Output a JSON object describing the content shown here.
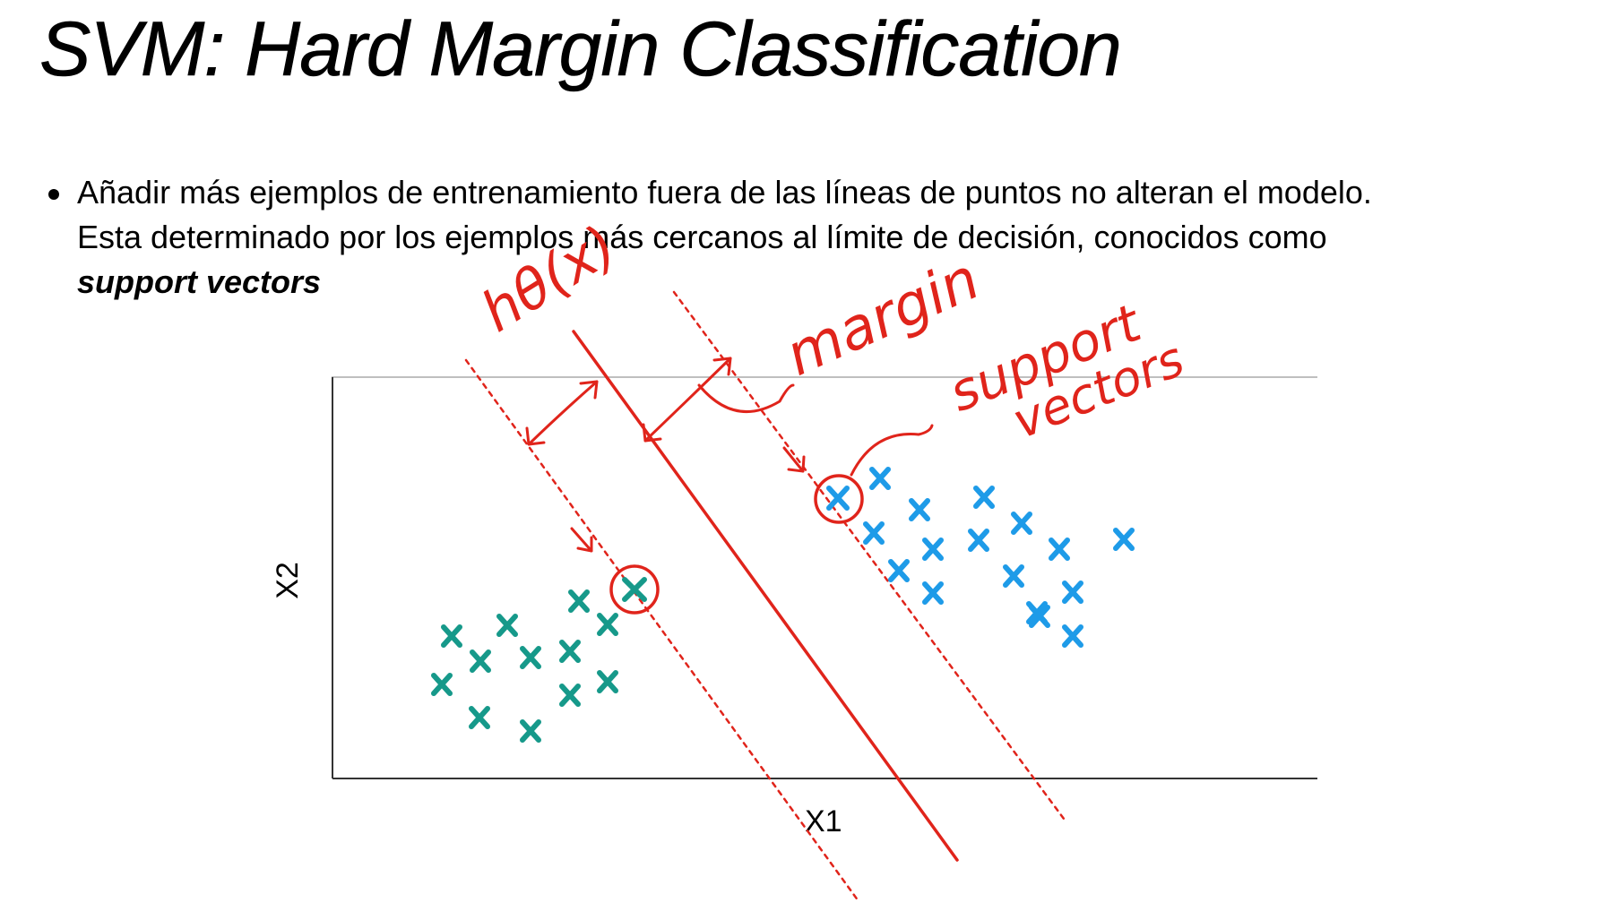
{
  "slide": {
    "title": "SVM: Hard Margin Classification",
    "bullet": {
      "line1": "Añadir más ejemplos de entrenamiento fuera de las líneas de puntos no alteran el modelo.",
      "line2": "Esta determinado por los ejemplos más cercanos al límite de decisión, conocidos como",
      "emphasis": "support vectors"
    }
  },
  "diagram": {
    "x_axis_label": "X1",
    "y_axis_label": "X2",
    "annotations": {
      "hypothesis": "hθ(x)",
      "margin": "margin",
      "support": "support",
      "vectors": "vectors"
    },
    "colors": {
      "class_a": "#16998a",
      "class_b": "#1e9be8",
      "ink": "#e0241b"
    }
  }
}
